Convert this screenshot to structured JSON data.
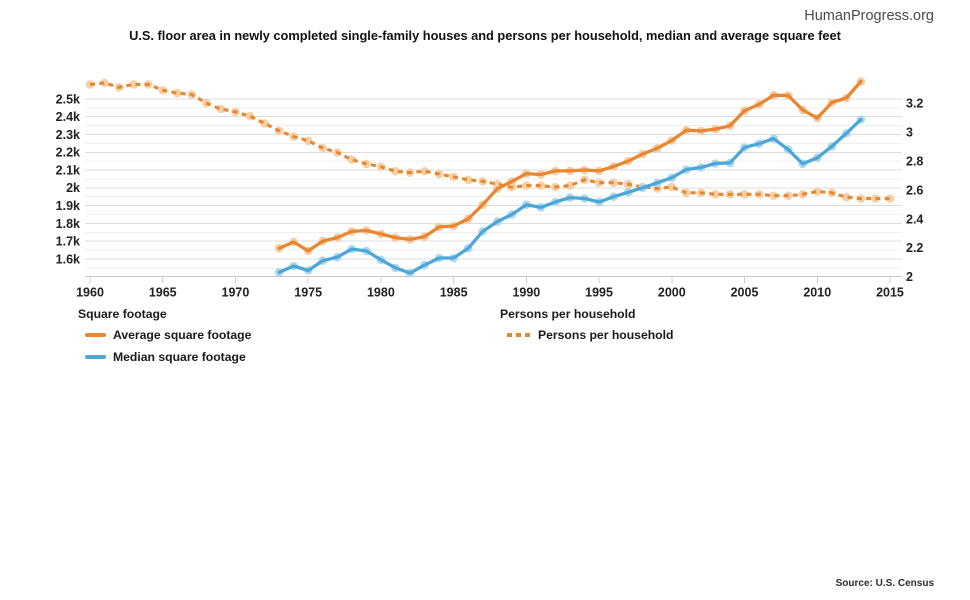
{
  "page": {
    "logo": "HumanProgress.org",
    "title": "U.S. floor area in newly completed single-family houses and persons per household, median and average square feet",
    "source": "Source: U.S. Census"
  },
  "legend": {
    "left_header": "Square footage",
    "right_header": "Persons per household",
    "items": [
      {
        "label": "Average square footage",
        "style": "solid",
        "color": "#E8872F"
      },
      {
        "label": "Median square footage",
        "style": "solid",
        "color": "#4AA7D8"
      },
      {
        "label": "Persons per household",
        "style": "dotted",
        "color": "#E8872F"
      }
    ]
  },
  "chart_data": {
    "type": "line",
    "title": "U.S. floor area in newly completed single-family houses and persons per household, median and average square feet",
    "grid": "horizontal major+minor, no vertical",
    "colors": {
      "orange": "#E8872F",
      "orange_marker": "#F6CFA3",
      "blue": "#4AA7D8",
      "blue_marker": "#ABD6EE",
      "grid_major": "#dcdcdc",
      "grid_minor": "#efefef",
      "axis_line": "#c7c7c7",
      "tick_text": "#222222"
    },
    "x_axis": {
      "tick_years": [
        1960,
        1965,
        1970,
        1975,
        1980,
        1985,
        1990,
        1995,
        2000,
        2005,
        2010,
        2015
      ],
      "range": [
        1960,
        2015
      ]
    },
    "left_axis": {
      "title": "Square footage",
      "unit": "square feet",
      "range": [
        1500,
        2650
      ],
      "ticks": [
        {
          "label": "1.6k",
          "value": 1600
        },
        {
          "label": "1.7k",
          "value": 1700
        },
        {
          "label": "1.8k",
          "value": 1800
        },
        {
          "label": "1.9k",
          "value": 1900
        },
        {
          "label": "2k",
          "value": 2000
        },
        {
          "label": "2.1k",
          "value": 2100
        },
        {
          "label": "2.2k",
          "value": 2200
        },
        {
          "label": "2.3k",
          "value": 2300
        },
        {
          "label": "2.4k",
          "value": 2400
        },
        {
          "label": "2.5k",
          "value": 2500
        }
      ]
    },
    "right_axis": {
      "title": "Persons per household",
      "range": [
        2,
        3.4
      ],
      "ticks": [
        {
          "label": "2",
          "value": 2.0
        },
        {
          "label": "2.2",
          "value": 2.2
        },
        {
          "label": "2.4",
          "value": 2.4
        },
        {
          "label": "2.6",
          "value": 2.6
        },
        {
          "label": "2.8",
          "value": 2.8
        },
        {
          "label": "3",
          "value": 3.0
        },
        {
          "label": "3.2",
          "value": 3.2
        }
      ]
    },
    "series": [
      {
        "name": "Persons per household",
        "axis": "right",
        "line": "dotted",
        "color": "#E8872F",
        "marker_color": "#F6CFA3",
        "x_start": 1960,
        "values": [
          3.33,
          3.34,
          3.31,
          3.33,
          3.33,
          3.29,
          3.27,
          3.26,
          3.2,
          3.16,
          3.14,
          3.11,
          3.06,
          3.01,
          2.97,
          2.94,
          2.89,
          2.86,
          2.81,
          2.78,
          2.76,
          2.73,
          2.72,
          2.73,
          2.71,
          2.69,
          2.67,
          2.66,
          2.64,
          2.62,
          2.63,
          2.63,
          2.62,
          2.63,
          2.67,
          2.65,
          2.65,
          2.64,
          2.62,
          2.61,
          2.62,
          2.58,
          2.58,
          2.57,
          2.57,
          2.57,
          2.57,
          2.56,
          2.56,
          2.57,
          2.59,
          2.58,
          2.55,
          2.54,
          2.54,
          2.54
        ]
      },
      {
        "name": "Average square footage",
        "axis": "left",
        "line": "solid",
        "color": "#E8872F",
        "marker_color": "#F5C99F",
        "x_start": 1973,
        "values": [
          1660,
          1695,
          1645,
          1700,
          1720,
          1755,
          1760,
          1740,
          1720,
          1710,
          1725,
          1780,
          1785,
          1825,
          1905,
          1995,
          2035,
          2080,
          2075,
          2095,
          2095,
          2100,
          2095,
          2120,
          2150,
          2190,
          2223,
          2266,
          2324,
          2320,
          2330,
          2349,
          2434,
          2469,
          2521,
          2519,
          2438,
          2392,
          2480,
          2505,
          2598
        ]
      },
      {
        "name": "Median square footage",
        "axis": "left",
        "line": "solid",
        "color": "#4AA7D8",
        "marker_color": "#ABD6EE",
        "x_start": 1973,
        "values": [
          1525,
          1560,
          1535,
          1590,
          1610,
          1655,
          1645,
          1595,
          1550,
          1520,
          1565,
          1605,
          1605,
          1660,
          1755,
          1810,
          1850,
          1905,
          1890,
          1920,
          1945,
          1940,
          1920,
          1950,
          1975,
          2000,
          2028,
          2057,
          2103,
          2114,
          2137,
          2140,
          2227,
          2248,
          2277,
          2215,
          2135,
          2169,
          2233,
          2306,
          2384
        ]
      }
    ]
  }
}
